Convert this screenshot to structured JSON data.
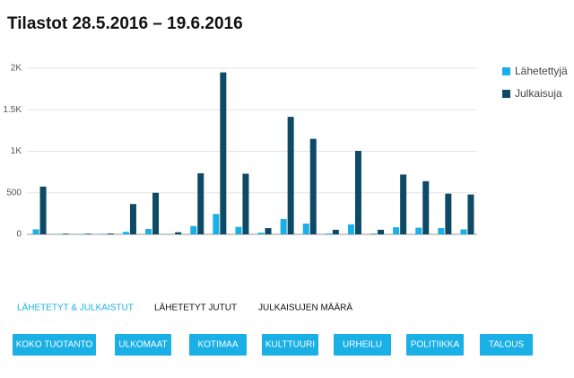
{
  "chart_data": {
    "type": "bar",
    "title": "Tilastot 28.5.2016 – 19.6.2016",
    "categories": [
      null,
      null,
      null,
      null,
      null,
      null,
      null,
      null,
      null,
      null,
      null,
      null,
      null,
      null,
      null,
      null,
      null,
      null,
      null,
      null
    ],
    "series": [
      {
        "name": "Lähetettyjä",
        "color": "#1ab0e6",
        "values": [
          60,
          2,
          2,
          3,
          30,
          65,
          5,
          100,
          245,
          90,
          20,
          185,
          130,
          10,
          120,
          10,
          85,
          80,
          75,
          60
        ]
      },
      {
        "name": "Julkaisuja",
        "color": "#0c4a66",
        "values": [
          575,
          8,
          8,
          10,
          365,
          500,
          25,
          735,
          1950,
          730,
          75,
          1415,
          1150,
          55,
          1005,
          55,
          720,
          640,
          490,
          480
        ]
      }
    ],
    "ylim": [
      0,
      2000
    ],
    "yticks": [
      0,
      500,
      {
        "value": 1000,
        "label": "1K"
      },
      {
        "value": 1500,
        "label": "1.5K"
      },
      {
        "value": 2000,
        "label": "2K"
      }
    ],
    "grid": true,
    "legend": "right"
  },
  "tabs": [
    "LÄHETETYT & JULKAISTUT",
    "LÄHETETYT JUTUT",
    "JULKAISUJEN MÄÄRÄ"
  ],
  "buttons": [
    "KOKO TUOTANTO",
    "ULKOMAAT",
    "KOTIMAA",
    "KULTTUURI",
    "URHEILU",
    "POLITIIKKA",
    "TALOUS"
  ]
}
